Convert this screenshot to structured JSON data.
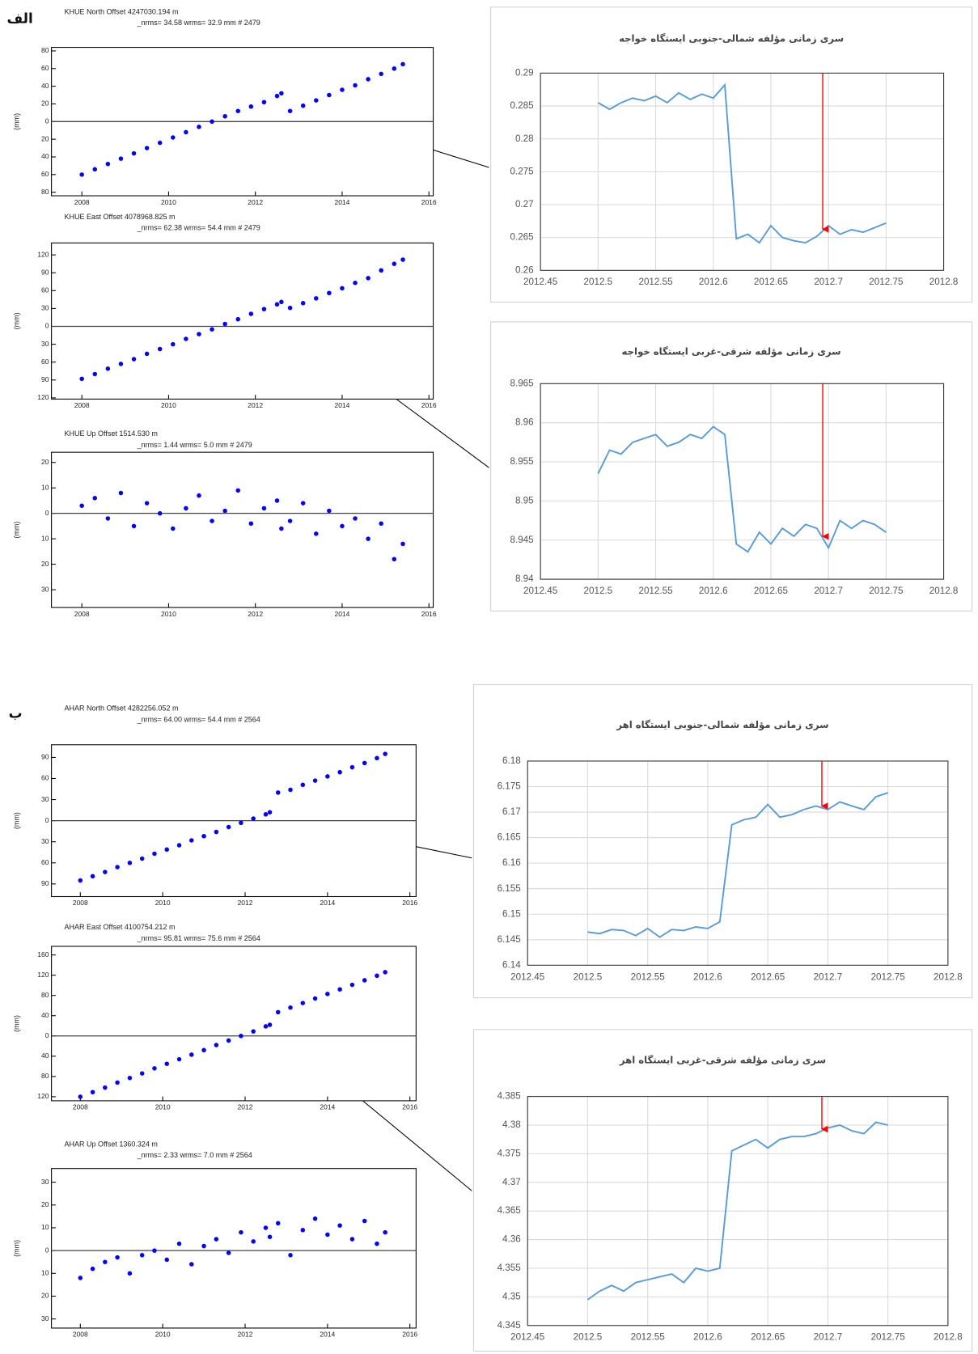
{
  "panel_labels": [
    "الف",
    "ب"
  ],
  "chart_data": [
    {
      "type": "scatter",
      "title": "KHUE North Offset 4247030.194 m",
      "subtitle": "_nrms= 34.58 wrms= 32.9 mm # 2479",
      "ylabel": "(mm)",
      "color": "#0000ff",
      "x": [
        2008.0,
        2008.3,
        2008.6,
        2008.9,
        2009.2,
        2009.5,
        2009.8,
        2010.1,
        2010.4,
        2010.7,
        2011.0,
        2011.3,
        2011.6,
        2011.9,
        2012.2,
        2012.5,
        2012.6,
        2012.8,
        2013.1,
        2013.4,
        2013.7,
        2014.0,
        2014.3,
        2014.6,
        2014.9,
        2015.2,
        2015.4
      ],
      "values": [
        -60,
        -54,
        -48,
        -42,
        -36,
        -30,
        -24,
        -18,
        -12,
        -6,
        0,
        6,
        12,
        17,
        22,
        29,
        32,
        12,
        18,
        24,
        30,
        36,
        41,
        48,
        54,
        60,
        65
      ],
      "xlim": [
        2007.3,
        2016.1
      ],
      "xticks": [
        2008,
        2010,
        2012,
        2014,
        2016
      ],
      "ylim": [
        -84,
        84
      ],
      "yticks": [
        80,
        60,
        40,
        20,
        0,
        {
          "value": -20,
          "label": "20"
        },
        {
          "value": -40,
          "label": "40"
        },
        {
          "value": -60,
          "label": "60"
        },
        {
          "value": -80,
          "label": "80"
        }
      ]
    },
    {
      "type": "scatter",
      "title": "KHUE East Offset 4078968.825 m",
      "subtitle": "_nrms= 62.38 wrms= 54.4 mm # 2479",
      "ylabel": "(mm)",
      "color": "#0000ff",
      "x": [
        2008.0,
        2008.3,
        2008.6,
        2008.9,
        2009.2,
        2009.5,
        2009.8,
        2010.1,
        2010.4,
        2010.7,
        2011.0,
        2011.3,
        2011.6,
        2011.9,
        2012.2,
        2012.5,
        2012.6,
        2012.8,
        2013.1,
        2013.4,
        2013.7,
        2014.0,
        2014.3,
        2014.6,
        2014.9,
        2015.2,
        2015.4
      ],
      "values": [
        -88,
        -80,
        -71,
        -63,
        -55,
        -46,
        -38,
        -30,
        -21,
        -13,
        -5,
        4,
        12,
        21,
        29,
        37,
        41,
        31,
        39,
        47,
        56,
        64,
        73,
        81,
        94,
        105,
        112
      ],
      "xlim": [
        2007.3,
        2016.1
      ],
      "xticks": [
        2008,
        2010,
        2012,
        2014,
        2016
      ],
      "ylim": [
        -122,
        140
      ],
      "yticks": [
        120,
        90,
        60,
        30,
        0,
        {
          "value": -30,
          "label": "30"
        },
        {
          "value": -60,
          "label": "60"
        },
        {
          "value": -90,
          "label": "90"
        },
        {
          "value": -120,
          "label": "120"
        }
      ]
    },
    {
      "type": "scatter",
      "title": "KHUE Up Offset 1514.530 m",
      "subtitle": "_nrms= 1.44 wrms= 5.0 mm # 2479",
      "ylabel": "(mm)",
      "color": "#0000ff",
      "x": [
        2008.0,
        2008.3,
        2008.6,
        2008.9,
        2009.2,
        2009.5,
        2009.8,
        2010.1,
        2010.4,
        2010.7,
        2011.0,
        2011.3,
        2011.6,
        2011.9,
        2012.2,
        2012.5,
        2012.6,
        2012.8,
        2013.1,
        2013.4,
        2013.7,
        2014.0,
        2014.3,
        2014.6,
        2014.9,
        2015.2,
        2015.4
      ],
      "values": [
        3,
        6,
        -2,
        8,
        -5,
        4,
        0,
        -6,
        2,
        7,
        -3,
        1,
        9,
        -4,
        2,
        5,
        -6,
        -3,
        4,
        -8,
        1,
        -5,
        -2,
        -10,
        -4,
        -18,
        -12
      ],
      "xlim": [
        2007.3,
        2016.1
      ],
      "xticks": [
        2008,
        2010,
        2012,
        2014,
        2016
      ],
      "ylim": [
        -37,
        24
      ],
      "yticks": [
        20,
        10,
        0,
        {
          "value": -10,
          "label": "10"
        },
        {
          "value": -20,
          "label": "20"
        },
        {
          "value": -30,
          "label": "30"
        }
      ]
    },
    {
      "type": "scatter",
      "title": "AHAR North Offset 4282256.052 m",
      "subtitle": "_nrms= 64.00 wrms= 54.4 mm # 2564",
      "ylabel": "(mm)",
      "color": "#0000ff",
      "x": [
        2008.0,
        2008.3,
        2008.6,
        2008.9,
        2009.2,
        2009.5,
        2009.8,
        2010.1,
        2010.4,
        2010.7,
        2011.0,
        2011.3,
        2011.6,
        2011.9,
        2012.2,
        2012.5,
        2012.6,
        2012.8,
        2013.1,
        2013.4,
        2013.7,
        2014.0,
        2014.3,
        2014.6,
        2014.9,
        2015.2,
        2015.4
      ],
      "values": [
        -85,
        -79,
        -73,
        -66,
        -60,
        -54,
        -47,
        -41,
        -35,
        -28,
        -22,
        -16,
        -9,
        -3,
        3,
        9,
        12,
        40,
        44,
        51,
        57,
        63,
        69,
        76,
        82,
        89,
        95
      ],
      "xlim": [
        2007.3,
        2016.15
      ],
      "xticks": [
        2008,
        2010,
        2012,
        2014,
        2016
      ],
      "ylim": [
        -108,
        108
      ],
      "yticks": [
        90,
        60,
        30,
        0,
        {
          "value": -30,
          "label": "30"
        },
        {
          "value": -60,
          "label": "60"
        },
        {
          "value": -90,
          "label": "90"
        }
      ]
    },
    {
      "type": "scatter",
      "title": "AHAR East Offset 4100754.212 m",
      "subtitle": "_nrms= 95.81 wrms= 75.6 mm # 2564",
      "ylabel": "(mm)",
      "color": "#0000ff",
      "x": [
        2008.0,
        2008.3,
        2008.6,
        2008.9,
        2009.2,
        2009.5,
        2009.8,
        2010.1,
        2010.4,
        2010.7,
        2011.0,
        2011.3,
        2011.6,
        2011.9,
        2012.2,
        2012.5,
        2012.6,
        2012.8,
        2013.1,
        2013.4,
        2013.7,
        2014.0,
        2014.3,
        2014.6,
        2014.9,
        2015.2,
        2015.4
      ],
      "values": [
        -120,
        -111,
        -102,
        -92,
        -83,
        -74,
        -64,
        -55,
        -46,
        -37,
        -28,
        -18,
        -9,
        0,
        9,
        19,
        22,
        47,
        56,
        65,
        74,
        83,
        92,
        101,
        110,
        119,
        126
      ],
      "xlim": [
        2007.3,
        2016.15
      ],
      "xticks": [
        2008,
        2010,
        2012,
        2014,
        2016
      ],
      "ylim": [
        -128,
        177
      ],
      "yticks": [
        160,
        120,
        80,
        40,
        0,
        {
          "value": -40,
          "label": "40"
        },
        {
          "value": -80,
          "label": "80"
        },
        {
          "value": -120,
          "label": "120"
        }
      ]
    },
    {
      "type": "scatter",
      "title": "AHAR Up Offset 1360.324 m",
      "subtitle": "_nrms= 2.33 wrms= 7.0 mm # 2564",
      "ylabel": "(mm)",
      "color": "#0000ff",
      "x": [
        2008.0,
        2008.3,
        2008.6,
        2008.9,
        2009.2,
        2009.5,
        2009.8,
        2010.1,
        2010.4,
        2010.7,
        2011.0,
        2011.3,
        2011.6,
        2011.9,
        2012.2,
        2012.5,
        2012.6,
        2012.8,
        2013.1,
        2013.4,
        2013.7,
        2014.0,
        2014.3,
        2014.6,
        2014.9,
        2015.2,
        2015.4
      ],
      "values": [
        -12,
        -8,
        -5,
        -3,
        -10,
        -2,
        0,
        -4,
        3,
        -6,
        2,
        5,
        -1,
        8,
        4,
        10,
        6,
        12,
        -2,
        9,
        14,
        7,
        11,
        5,
        13,
        3,
        8
      ],
      "xlim": [
        2007.3,
        2016.15
      ],
      "xticks": [
        2008,
        2010,
        2012,
        2014,
        2016
      ],
      "ylim": [
        -34,
        36
      ],
      "yticks": [
        30,
        20,
        10,
        0,
        {
          "value": -10,
          "label": "10"
        },
        {
          "value": -20,
          "label": "20"
        },
        {
          "value": -30,
          "label": "30"
        }
      ]
    },
    {
      "type": "line",
      "title": "سری زمانی مؤلفه شمالی-جنوبی ایستگاه خواجه",
      "color": "#5b9bd5",
      "arrow_x": 2012.695,
      "arrow_color": "#ff0000",
      "x": [
        2012.5,
        2012.51,
        2012.52,
        2012.53,
        2012.54,
        2012.55,
        2012.56,
        2012.57,
        2012.58,
        2012.59,
        2012.6,
        2012.61,
        2012.62,
        2012.63,
        2012.64,
        2012.65,
        2012.66,
        2012.67,
        2012.68,
        2012.69,
        2012.7,
        2012.71,
        2012.72,
        2012.73,
        2012.74,
        2012.75
      ],
      "values": [
        0.2855,
        0.2845,
        0.2855,
        0.2862,
        0.2858,
        0.2865,
        0.2855,
        0.287,
        0.286,
        0.2868,
        0.2862,
        0.2882,
        0.2648,
        0.2655,
        0.2642,
        0.2668,
        0.265,
        0.2645,
        0.2642,
        0.2652,
        0.2668,
        0.2655,
        0.2662,
        0.2658,
        0.2665,
        0.2672
      ],
      "xlim": [
        2012.45,
        2012.8
      ],
      "xticks": [
        2012.45,
        2012.5,
        2012.55,
        2012.6,
        2012.65,
        2012.7,
        2012.75,
        2012.8
      ],
      "ylim": [
        0.26,
        0.29
      ],
      "yticks": [
        0.26,
        0.265,
        0.27,
        0.275,
        0.28,
        0.285,
        0.29
      ],
      "grid": true
    },
    {
      "type": "line",
      "title": "سری زمانی مؤلفه شرقی-غربی ایستگاه خواجه",
      "color": "#5b9bd5",
      "arrow_x": 2012.695,
      "arrow_color": "#ff0000",
      "x": [
        2012.5,
        2012.51,
        2012.52,
        2012.53,
        2012.54,
        2012.55,
        2012.56,
        2012.57,
        2012.58,
        2012.59,
        2012.6,
        2012.61,
        2012.62,
        2012.63,
        2012.64,
        2012.65,
        2012.66,
        2012.67,
        2012.68,
        2012.69,
        2012.7,
        2012.71,
        2012.72,
        2012.73,
        2012.74,
        2012.75
      ],
      "values": [
        8.9535,
        8.9565,
        8.956,
        8.9575,
        8.958,
        8.9585,
        8.957,
        8.9575,
        8.9585,
        8.958,
        8.9595,
        8.9585,
        8.9445,
        8.9435,
        8.946,
        8.9445,
        8.9465,
        8.9455,
        8.947,
        8.9465,
        8.944,
        8.9475,
        8.9465,
        8.9475,
        8.947,
        8.946
      ],
      "xlim": [
        2012.45,
        2012.8
      ],
      "xticks": [
        2012.45,
        2012.5,
        2012.55,
        2012.6,
        2012.65,
        2012.7,
        2012.75,
        2012.8
      ],
      "ylim": [
        8.94,
        8.965
      ],
      "yticks": [
        8.94,
        8.945,
        8.95,
        8.955,
        8.96,
        8.965
      ],
      "grid": true
    },
    {
      "type": "line",
      "title": "سری زمانی مؤلفه شمالی-جنوبی ایستگاه اهر",
      "color": "#5b9bd5",
      "arrow_x": 2012.695,
      "arrow_color": "#ff0000",
      "x": [
        2012.5,
        2012.51,
        2012.52,
        2012.53,
        2012.54,
        2012.55,
        2012.56,
        2012.57,
        2012.58,
        2012.59,
        2012.6,
        2012.61,
        2012.62,
        2012.63,
        2012.64,
        2012.65,
        2012.66,
        2012.67,
        2012.68,
        2012.69,
        2012.7,
        2012.71,
        2012.72,
        2012.73,
        2012.74,
        2012.75
      ],
      "values": [
        6.1465,
        6.1462,
        6.147,
        6.1468,
        6.1458,
        6.1472,
        6.1455,
        6.147,
        6.1468,
        6.1475,
        6.1472,
        6.1485,
        6.1675,
        6.1685,
        6.169,
        6.1715,
        6.169,
        6.1695,
        6.1705,
        6.1712,
        6.1705,
        6.172,
        6.1712,
        6.1705,
        6.173,
        6.1738
      ],
      "xlim": [
        2012.45,
        2012.8
      ],
      "xticks": [
        2012.45,
        2012.5,
        2012.55,
        2012.6,
        2012.65,
        2012.7,
        2012.75,
        2012.8
      ],
      "ylim": [
        6.14,
        6.18
      ],
      "yticks": [
        6.14,
        6.145,
        6.15,
        6.155,
        6.16,
        6.165,
        6.17,
        6.175,
        6.18
      ],
      "grid": true
    },
    {
      "type": "line",
      "title": "سری زمانی مؤلفه شرقی-غربی ایستگاه اهر",
      "color": "#5b9bd5",
      "arrow_x": 2012.695,
      "arrow_color": "#ff0000",
      "x": [
        2012.5,
        2012.51,
        2012.52,
        2012.53,
        2012.54,
        2012.55,
        2012.56,
        2012.57,
        2012.58,
        2012.59,
        2012.6,
        2012.61,
        2012.62,
        2012.63,
        2012.64,
        2012.65,
        2012.66,
        2012.67,
        2012.68,
        2012.69,
        2012.7,
        2012.71,
        2012.72,
        2012.73,
        2012.74,
        2012.75
      ],
      "values": [
        4.3495,
        4.351,
        4.352,
        4.351,
        4.3525,
        4.353,
        4.3535,
        4.354,
        4.3525,
        4.355,
        4.3545,
        4.355,
        4.3755,
        4.3765,
        4.3775,
        4.376,
        4.3775,
        4.378,
        4.378,
        4.3785,
        4.3795,
        4.38,
        4.379,
        4.3785,
        4.3805,
        4.38
      ],
      "xlim": [
        2012.45,
        2012.8
      ],
      "xticks": [
        2012.45,
        2012.5,
        2012.55,
        2012.6,
        2012.65,
        2012.7,
        2012.75,
        2012.8
      ],
      "ylim": [
        4.345,
        4.385
      ],
      "yticks": [
        4.345,
        4.35,
        4.355,
        4.36,
        4.365,
        4.37,
        4.375,
        4.38,
        4.385
      ],
      "grid": true
    }
  ]
}
